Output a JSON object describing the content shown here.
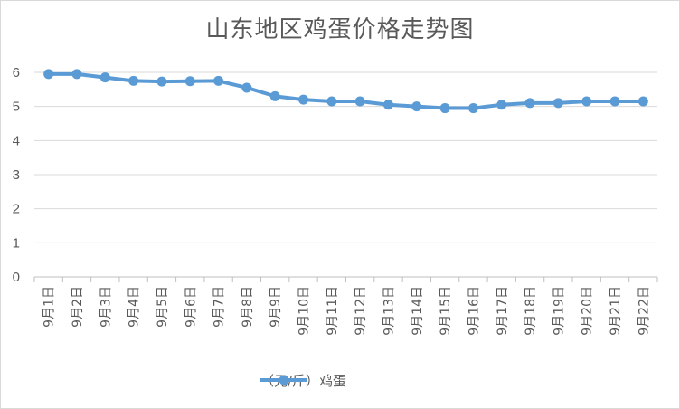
{
  "chart_data": {
    "type": "line",
    "title": "山东地区鸡蛋价格走势图",
    "categories": [
      "9月1日",
      "9月2日",
      "9月3日",
      "9月4日",
      "9月5日",
      "9月6日",
      "9月7日",
      "9月8日",
      "9月9日",
      "9月10日",
      "9月11日",
      "9月12日",
      "9月13日",
      "9月14日",
      "9月15日",
      "9月16日",
      "9月17日",
      "9月18日",
      "9月19日",
      "9月20日",
      "9月21日",
      "9月22日"
    ],
    "series": [
      {
        "name": "（元/斤）鸡蛋",
        "values": [
          5.95,
          5.95,
          5.85,
          5.75,
          5.73,
          5.74,
          5.75,
          5.55,
          5.3,
          5.2,
          5.15,
          5.15,
          5.05,
          5.0,
          4.95,
          4.95,
          5.05,
          5.1,
          5.1,
          5.15,
          5.15,
          5.15
        ]
      }
    ],
    "ylim": [
      0,
      6
    ],
    "yticks": [
      0,
      1,
      2,
      3,
      4,
      5,
      6
    ],
    "grid": true,
    "legend_position": "bottom",
    "colors": {
      "line": "#5b9bd5",
      "grid": "#d9d9d9",
      "axis": "#bfbfbf",
      "text": "#595959"
    }
  }
}
